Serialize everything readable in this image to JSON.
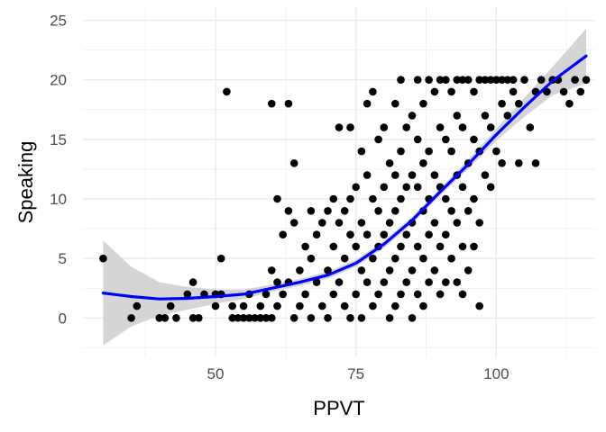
{
  "chart_data": {
    "type": "scatter",
    "title": "",
    "xlabel": "PPVT",
    "ylabel": "Speaking",
    "xlim": [
      26.4,
      117.6
    ],
    "ylim": [
      -3.3,
      26.1
    ],
    "x_ticks": [
      50,
      75,
      100
    ],
    "x_tick_labels": [
      "50",
      "75",
      "100"
    ],
    "y_ticks": [
      0,
      5,
      10,
      15,
      20,
      25
    ],
    "y_tick_labels": [
      "0",
      "5",
      "10",
      "15",
      "20",
      "25"
    ],
    "grid": true,
    "legend": "none",
    "point_color": "#000000",
    "smooth_color": "#0000ff",
    "ribbon_color": "#d3d3d3",
    "points": [
      [
        30,
        5
      ],
      [
        35,
        0
      ],
      [
        36,
        1
      ],
      [
        40,
        0
      ],
      [
        41,
        0
      ],
      [
        42,
        1
      ],
      [
        43,
        0
      ],
      [
        45,
        2
      ],
      [
        46,
        3
      ],
      [
        46,
        0
      ],
      [
        47,
        0
      ],
      [
        48,
        2
      ],
      [
        50,
        2
      ],
      [
        50,
        1
      ],
      [
        51,
        5
      ],
      [
        51,
        2
      ],
      [
        52,
        19
      ],
      [
        53,
        0
      ],
      [
        53,
        1
      ],
      [
        54,
        0
      ],
      [
        55,
        0
      ],
      [
        55,
        1
      ],
      [
        56,
        2
      ],
      [
        56,
        0
      ],
      [
        57,
        0
      ],
      [
        58,
        1
      ],
      [
        58,
        0
      ],
      [
        59,
        2
      ],
      [
        59,
        0
      ],
      [
        60,
        18
      ],
      [
        60,
        4
      ],
      [
        60,
        0
      ],
      [
        61,
        10
      ],
      [
        61,
        3
      ],
      [
        61,
        1
      ],
      [
        62,
        7
      ],
      [
        62,
        2
      ],
      [
        63,
        18
      ],
      [
        63,
        9
      ],
      [
        63,
        3
      ],
      [
        64,
        13
      ],
      [
        64,
        8
      ],
      [
        64,
        0
      ],
      [
        65,
        4
      ],
      [
        65,
        1
      ],
      [
        66,
        6
      ],
      [
        66,
        2
      ],
      [
        67,
        9
      ],
      [
        67,
        5
      ],
      [
        67,
        0
      ],
      [
        68,
        7
      ],
      [
        68,
        3
      ],
      [
        69,
        8
      ],
      [
        69,
        1
      ],
      [
        70,
        9
      ],
      [
        70,
        4
      ],
      [
        70,
        0
      ],
      [
        71,
        10
      ],
      [
        71,
        6
      ],
      [
        71,
        2
      ],
      [
        72,
        16
      ],
      [
        72,
        8
      ],
      [
        72,
        3
      ],
      [
        73,
        9
      ],
      [
        73,
        5
      ],
      [
        73,
        1
      ],
      [
        74,
        16
      ],
      [
        74,
        10
      ],
      [
        74,
        7
      ],
      [
        74,
        0
      ],
      [
        75,
        11
      ],
      [
        75,
        6
      ],
      [
        75,
        2
      ],
      [
        76,
        14
      ],
      [
        76,
        8
      ],
      [
        76,
        4
      ],
      [
        76,
        0
      ],
      [
        77,
        18
      ],
      [
        77,
        12
      ],
      [
        77,
        7
      ],
      [
        77,
        3
      ],
      [
        78,
        19
      ],
      [
        78,
        10
      ],
      [
        78,
        5
      ],
      [
        78,
        1
      ],
      [
        79,
        15
      ],
      [
        79,
        9
      ],
      [
        79,
        6
      ],
      [
        79,
        2
      ],
      [
        80,
        16
      ],
      [
        80,
        11
      ],
      [
        80,
        7
      ],
      [
        80,
        3
      ],
      [
        81,
        13
      ],
      [
        81,
        8
      ],
      [
        81,
        4
      ],
      [
        81,
        0
      ],
      [
        82,
        18
      ],
      [
        82,
        12
      ],
      [
        82,
        9
      ],
      [
        82,
        5
      ],
      [
        82,
        1
      ],
      [
        83,
        20
      ],
      [
        83,
        14
      ],
      [
        83,
        10
      ],
      [
        83,
        6
      ],
      [
        83,
        2
      ],
      [
        84,
        16
      ],
      [
        84,
        11
      ],
      [
        84,
        7
      ],
      [
        84,
        3
      ],
      [
        85,
        17
      ],
      [
        85,
        12
      ],
      [
        85,
        8
      ],
      [
        85,
        4
      ],
      [
        85,
        0
      ],
      [
        86,
        20
      ],
      [
        86,
        15
      ],
      [
        86,
        11
      ],
      [
        86,
        6
      ],
      [
        86,
        2
      ],
      [
        87,
        18
      ],
      [
        87,
        13
      ],
      [
        87,
        9
      ],
      [
        87,
        5
      ],
      [
        87,
        1
      ],
      [
        88,
        20
      ],
      [
        88,
        14
      ],
      [
        88,
        10
      ],
      [
        88,
        7
      ],
      [
        88,
        3
      ],
      [
        89,
        19
      ],
      [
        89,
        12
      ],
      [
        89,
        8
      ],
      [
        89,
        4
      ],
      [
        90,
        20
      ],
      [
        90,
        16
      ],
      [
        90,
        11
      ],
      [
        90,
        6
      ],
      [
        90,
        2
      ],
      [
        91,
        20
      ],
      [
        91,
        15
      ],
      [
        91,
        10
      ],
      [
        91,
        7
      ],
      [
        91,
        3
      ],
      [
        92,
        19
      ],
      [
        92,
        14
      ],
      [
        92,
        9
      ],
      [
        92,
        5
      ],
      [
        93,
        20
      ],
      [
        93,
        17
      ],
      [
        93,
        12
      ],
      [
        93,
        8
      ],
      [
        93,
        3
      ],
      [
        94,
        20
      ],
      [
        94,
        16
      ],
      [
        94,
        11
      ],
      [
        94,
        6
      ],
      [
        94,
        2
      ],
      [
        95,
        20
      ],
      [
        95,
        13
      ],
      [
        95,
        9
      ],
      [
        95,
        4
      ],
      [
        96,
        19
      ],
      [
        96,
        15
      ],
      [
        96,
        10
      ],
      [
        96,
        6
      ],
      [
        97,
        20
      ],
      [
        97,
        14
      ],
      [
        97,
        8
      ],
      [
        97,
        1
      ],
      [
        98,
        20
      ],
      [
        98,
        17
      ],
      [
        98,
        12
      ],
      [
        99,
        20
      ],
      [
        99,
        16
      ],
      [
        99,
        11
      ],
      [
        100,
        20
      ],
      [
        100,
        14
      ],
      [
        101,
        20
      ],
      [
        101,
        18
      ],
      [
        101,
        13
      ],
      [
        102,
        20
      ],
      [
        102,
        17
      ],
      [
        103,
        20
      ],
      [
        103,
        19
      ],
      [
        104,
        18
      ],
      [
        104,
        13
      ],
      [
        105,
        20
      ],
      [
        106,
        16
      ],
      [
        107,
        19
      ],
      [
        107,
        13
      ],
      [
        108,
        20
      ],
      [
        109,
        19
      ],
      [
        110,
        20
      ],
      [
        111,
        20
      ],
      [
        112,
        19
      ],
      [
        113,
        18
      ],
      [
        114,
        20
      ],
      [
        115,
        19
      ],
      [
        116,
        20
      ]
    ],
    "smooth_line": [
      [
        30,
        2.1
      ],
      [
        35,
        1.8
      ],
      [
        40,
        1.6
      ],
      [
        45,
        1.65
      ],
      [
        50,
        1.8
      ],
      [
        55,
        2.0
      ],
      [
        60,
        2.5
      ],
      [
        65,
        3.0
      ],
      [
        70,
        3.6
      ],
      [
        75,
        4.6
      ],
      [
        80,
        6.2
      ],
      [
        85,
        8.2
      ],
      [
        90,
        10.6
      ],
      [
        95,
        12.9
      ],
      [
        100,
        15.4
      ],
      [
        105,
        17.7
      ],
      [
        110,
        19.9
      ],
      [
        116,
        22.0
      ]
    ],
    "ribbon_upper": [
      [
        30,
        6.5
      ],
      [
        35,
        4.3
      ],
      [
        40,
        3.0
      ],
      [
        45,
        2.6
      ],
      [
        50,
        2.4
      ],
      [
        55,
        2.4
      ],
      [
        60,
        2.8
      ],
      [
        65,
        3.3
      ],
      [
        70,
        3.9
      ],
      [
        75,
        4.9
      ],
      [
        80,
        6.5
      ],
      [
        85,
        8.5
      ],
      [
        90,
        10.9
      ],
      [
        95,
        13.3
      ],
      [
        100,
        15.9
      ],
      [
        105,
        18.5
      ],
      [
        110,
        21.1
      ],
      [
        116,
        24.3
      ]
    ],
    "ribbon_lower": [
      [
        30,
        -2.3
      ],
      [
        35,
        -0.7
      ],
      [
        40,
        0.2
      ],
      [
        45,
        0.7
      ],
      [
        50,
        1.2
      ],
      [
        55,
        1.6
      ],
      [
        60,
        2.2
      ],
      [
        65,
        2.7
      ],
      [
        70,
        3.3
      ],
      [
        75,
        4.3
      ],
      [
        80,
        5.9
      ],
      [
        85,
        7.9
      ],
      [
        90,
        10.3
      ],
      [
        95,
        12.5
      ],
      [
        100,
        14.9
      ],
      [
        105,
        16.9
      ],
      [
        110,
        18.7
      ],
      [
        116,
        19.7
      ]
    ]
  }
}
